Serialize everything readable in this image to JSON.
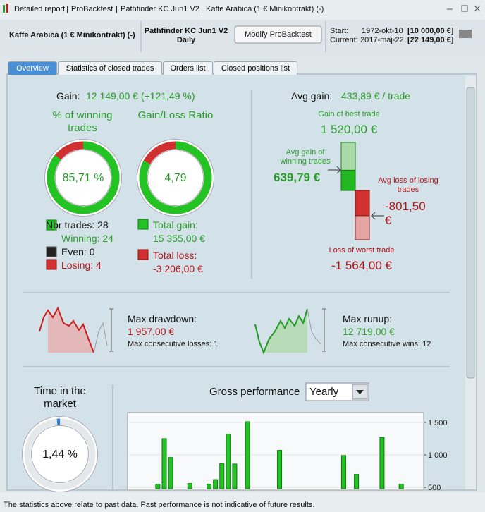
{
  "window": {
    "breadcrumb": [
      "Detailed report",
      "ProBacktest",
      "Pathfinder KC Jun1 V2",
      "Kaffe Arabica (1 € Minikontrakt) (-)"
    ]
  },
  "header": {
    "instrument": "Kaffe Arabica (1 € Minikontrakt) (-)",
    "strategy": "Pathfinder KC Jun1 V2",
    "timeframe": "Daily",
    "button": "Modify ProBacktest",
    "start_label": "Start:",
    "start_date": "1972-okt-10",
    "start_capital": "[10 000,00 €]",
    "current_label": "Current:",
    "current_date": "2017-maj-22",
    "current_capital": "[22 149,00 €]"
  },
  "tabs": [
    "Overview",
    "Statistics of closed trades",
    "Orders list",
    "Closed positions list"
  ],
  "gain": {
    "label": "Gain:",
    "value": "12 149,00 € (+121,49 %)"
  },
  "win_rate": {
    "title": "% of winning trades",
    "value": {
      "value": 85.71,
      "label": "85,71 %"
    }
  },
  "gain_loss_ratio": {
    "title": "Gain/Loss Ratio",
    "value": "4,79"
  },
  "trades": {
    "total": "Nbr trades: 28",
    "winning": "Winning: 24",
    "even": "Even: 0",
    "losing": "Losing: 4"
  },
  "total_gain": {
    "label": "Total gain:",
    "value": {
      "value": 15355,
      "label": "15 355,00 €"
    }
  },
  "total_loss": {
    "label": "Total loss:",
    "value": {
      "value": -3206,
      "label": "-3 206,00 €"
    }
  },
  "avg_gain": {
    "label": "Avg gain:",
    "value": "433,89 € / trade"
  },
  "best_trade": {
    "label": "Gain of best trade",
    "value": {
      "value": 1520,
      "label": "1 520,00 €"
    }
  },
  "avg_win": {
    "label": "Avg gain of winning trades",
    "value": {
      "value": 639.79,
      "label": "639,79 €"
    }
  },
  "avg_loss": {
    "label": "Avg loss of losing trades",
    "value": {
      "value": -801.5,
      "label": "-801,50 €"
    }
  },
  "worst_trade": {
    "label": "Loss of worst trade",
    "value": {
      "value": -1564,
      "label": "-1 564,00 €"
    }
  },
  "drawdown": {
    "label": "Max drawdown:",
    "value": "1 957,00 €",
    "consecutive": "Max consecutive losses: 1"
  },
  "runup": {
    "label": "Max runup:",
    "value": "12 719,00 €",
    "consecutive": "Max consecutive wins: 12"
  },
  "time_in_market": {
    "title": "Time in the market",
    "value": {
      "value": 1.44,
      "label": "1,44 %"
    }
  },
  "chart_data": {
    "type": "bar",
    "title": "Gross performance",
    "period": "Yearly",
    "categories": [
      null,
      null,
      null,
      null,
      null,
      null,
      null,
      null,
      null,
      null,
      null,
      null,
      null,
      null,
      null,
      null,
      null,
      null,
      null,
      null,
      null,
      null,
      null,
      null,
      null,
      null,
      null,
      null,
      null,
      null,
      null,
      null,
      null,
      null,
      null,
      null,
      null,
      null,
      null,
      null,
      null,
      null,
      null,
      null,
      null,
      null
    ],
    "values": [
      null,
      null,
      null,
      null,
      550,
      1250,
      960,
      null,
      null,
      560,
      null,
      null,
      550,
      620,
      870,
      1320,
      860,
      null,
      1510,
      null,
      null,
      null,
      null,
      1070,
      null,
      null,
      null,
      null,
      null,
      null,
      null,
      null,
      null,
      990,
      null,
      700,
      null,
      null,
      null,
      1270,
      null,
      null,
      550,
      null,
      null,
      null
    ],
    "color": "#22c322",
    "ylim": [
      480,
      1640
    ],
    "yticks": [
      500,
      {
        "value": 1000,
        "label": "1 000"
      },
      {
        "value": 1500,
        "label": "1 500"
      }
    ]
  },
  "footer": "The statistics above relate to past data. Past performance is not indicative of future results."
}
